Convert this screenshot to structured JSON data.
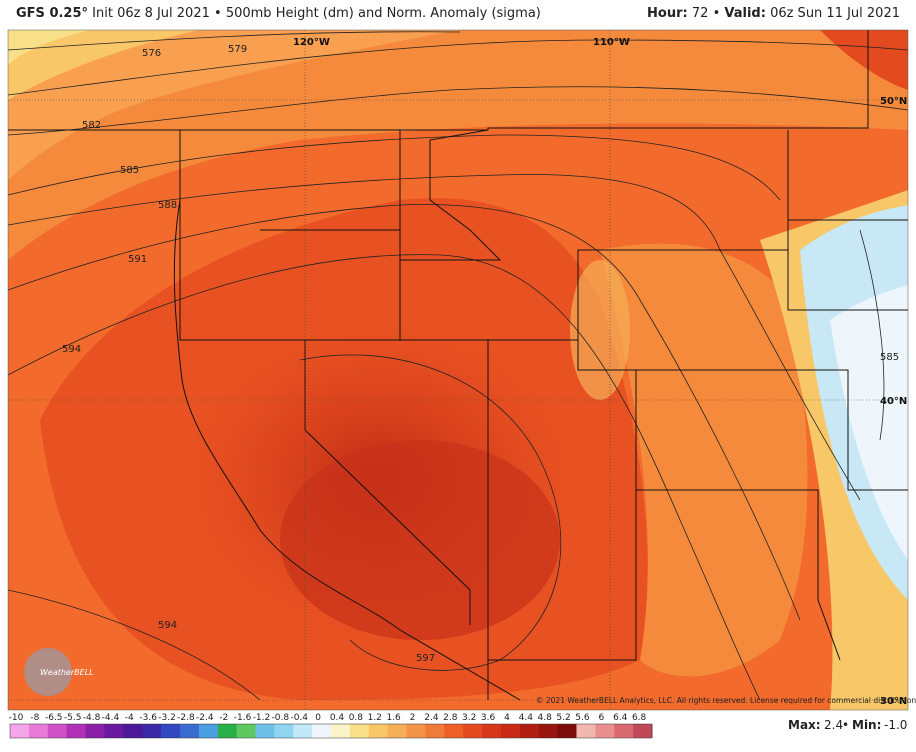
{
  "header": {
    "model": "GFS 0.25°",
    "init": "Init 06z 8 Jul 2021",
    "sep": "•",
    "product": "500mb Height (dm) and Norm. Anomaly (sigma)",
    "hour_label": "Hour:",
    "hour": 72,
    "valid_label": "Valid:",
    "valid": "06z Sun 11 Jul 2021"
  },
  "map": {
    "contour_labels": [
      576,
      579,
      582,
      585,
      588,
      591,
      594,
      594,
      597,
      585
    ],
    "grid_labels": [
      "120°W",
      "110°W",
      "50°N",
      "40°N",
      "30°N"
    ],
    "logo": "WeatherBELL",
    "copyright": "© 2021 WeatherBELL Analytics, LLC. All rights reserved. License required for commercial distribution."
  },
  "colorbar": {
    "ticks": [
      -10,
      -8,
      -6.5,
      -5.5,
      -4.8,
      -4.4,
      -4,
      -3.6,
      -3.2,
      -2.8,
      -2.4,
      -2,
      -1.6,
      -1.2,
      -0.8,
      -0.4,
      0,
      0.4,
      0.8,
      1.2,
      1.6,
      2,
      2.4,
      2.8,
      3.2,
      3.6,
      4,
      4.4,
      4.8,
      5.2,
      5.6,
      6,
      6.4,
      6.8
    ],
    "colors": [
      "#f4a6e8",
      "#e87ad8",
      "#d050c8",
      "#b030b8",
      "#8a20a8",
      "#6a1aa0",
      "#4a1898",
      "#3a2aa8",
      "#3048c0",
      "#3a6ad0",
      "#4aa0e0",
      "#2ab04a",
      "#60c860",
      "#6ec0e8",
      "#90d4f0",
      "#c0e8f8",
      "#eef6fc",
      "#fbf4c8",
      "#f8e08a",
      "#f8c868",
      "#f6ae58",
      "#f49448",
      "#f07a38",
      "#ec6028",
      "#e44a20",
      "#d8381a",
      "#c82a16",
      "#b01e12",
      "#98140e",
      "#7a0c0a",
      "#f2b8b0",
      "#e89090",
      "#d86a70",
      "#c04858"
    ]
  },
  "footer": {
    "max_label": "Max:",
    "max": 2.4,
    "sep": "•",
    "min_label": "Min:",
    "min": {
      "value": -1,
      "label": "-1.0"
    }
  }
}
